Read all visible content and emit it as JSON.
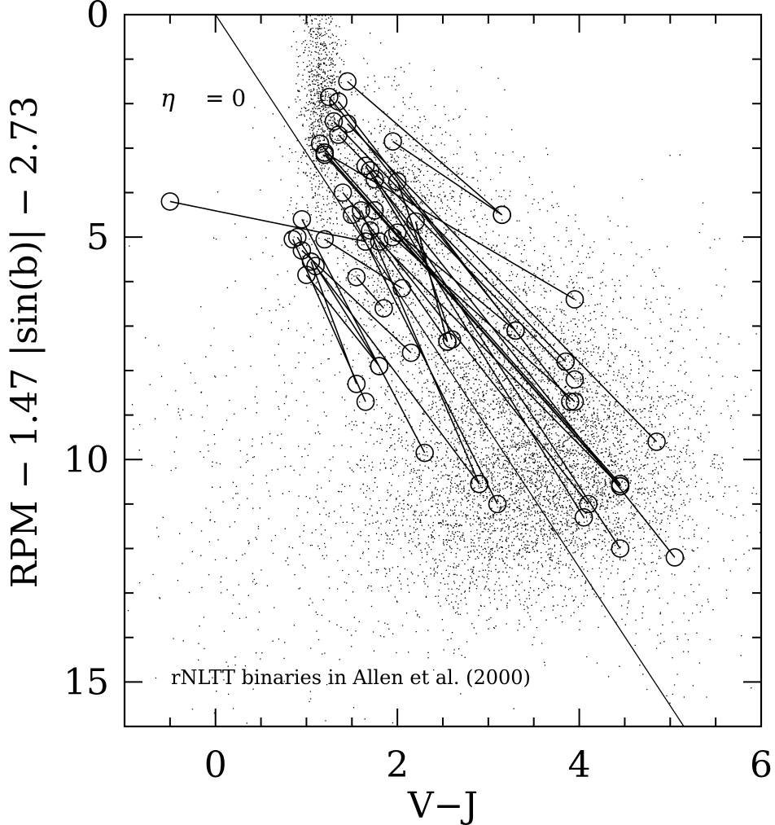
{
  "chart_data": {
    "type": "scatter",
    "title": "",
    "xlabel": "V−J",
    "ylabel": "RPM − 1.47 |sin(b)| − 2.73",
    "xlim": [
      -1,
      6
    ],
    "ylim": [
      16,
      0
    ],
    "y_inverted": true,
    "x_ticks": [
      0,
      2,
      4,
      6
    ],
    "y_ticks": [
      0,
      5,
      10,
      15
    ],
    "x_tick_labels": [
      "0",
      "2",
      "4",
      "6"
    ],
    "y_tick_labels": [
      "0",
      "5",
      "10",
      "15"
    ],
    "annotations": {
      "eta_label": "η",
      "eta_eq": "= 0",
      "caption": "rNLTT binaries in Allen et al. (2000)"
    },
    "eta_zero_line": [
      [
        0,
        0
      ],
      [
        5.15,
        16
      ]
    ],
    "background_field": {
      "description_count": 9000,
      "clusters": [
        {
          "cx": 1.15,
          "cy": 1.8,
          "sx": 0.12,
          "sy": 1.2,
          "n": 900
        },
        {
          "cx": 1.9,
          "cy": 4.5,
          "sx": 0.45,
          "sy": 1.3,
          "n": 1500
        },
        {
          "cx": 3.2,
          "cy": 8.0,
          "sx": 0.7,
          "sy": 1.6,
          "n": 2500
        },
        {
          "cx": 4.0,
          "cy": 10.2,
          "sx": 0.6,
          "sy": 1.2,
          "n": 1800
        },
        {
          "cx": 3.0,
          "cy": 11.3,
          "sx": 0.75,
          "sy": 1.2,
          "n": 1700
        },
        {
          "cx": 0.8,
          "cy": 10.5,
          "sx": 0.9,
          "sy": 3.0,
          "n": 500
        },
        {
          "cx": 5.0,
          "cy": 10.5,
          "sx": 0.5,
          "sy": 2.5,
          "n": 400
        }
      ]
    },
    "binary_pairs": [
      [
        [
          -0.5,
          4.2
        ],
        [
          1.65,
          5.1
        ]
      ],
      [
        [
          1.45,
          1.5
        ],
        [
          3.15,
          4.5
        ]
      ],
      [
        [
          1.95,
          2.85
        ],
        [
          3.15,
          4.5
        ]
      ],
      [
        [
          1.2,
          3.1
        ],
        [
          3.95,
          6.4
        ]
      ],
      [
        [
          1.2,
          3.1
        ],
        [
          4.45,
          10.6
        ]
      ],
      [
        [
          1.2,
          3.15
        ],
        [
          4.45,
          10.6
        ]
      ],
      [
        [
          1.25,
          1.85
        ],
        [
          3.3,
          7.1
        ]
      ],
      [
        [
          1.3,
          2.4
        ],
        [
          3.85,
          7.8
        ]
      ],
      [
        [
          1.35,
          2.7
        ],
        [
          3.95,
          8.2
        ]
      ],
      [
        [
          1.35,
          1.95
        ],
        [
          3.9,
          8.7
        ]
      ],
      [
        [
          1.45,
          2.45
        ],
        [
          4.85,
          9.6
        ]
      ],
      [
        [
          1.15,
          2.9
        ],
        [
          4.45,
          10.55
        ]
      ],
      [
        [
          1.4,
          4.0
        ],
        [
          4.1,
          11.0
        ]
      ],
      [
        [
          1.65,
          3.4
        ],
        [
          4.05,
          11.3
        ]
      ],
      [
        [
          1.7,
          3.5
        ],
        [
          4.45,
          12.0
        ]
      ],
      [
        [
          1.75,
          3.7
        ],
        [
          5.05,
          12.2
        ]
      ],
      [
        [
          2.0,
          3.75
        ],
        [
          2.6,
          7.3
        ]
      ],
      [
        [
          1.5,
          4.5
        ],
        [
          3.1,
          11.0
        ]
      ],
      [
        [
          1.6,
          4.4
        ],
        [
          2.9,
          10.55
        ]
      ],
      [
        [
          1.7,
          4.85
        ],
        [
          2.55,
          7.35
        ]
      ],
      [
        [
          1.8,
          5.1
        ],
        [
          4.45,
          10.6
        ]
      ],
      [
        [
          1.95,
          5.0
        ],
        [
          3.95,
          8.7
        ]
      ],
      [
        [
          2.2,
          4.65
        ],
        [
          2.55,
          7.35
        ]
      ],
      [
        [
          1.75,
          4.4
        ],
        [
          4.45,
          10.6
        ]
      ],
      [
        [
          0.95,
          4.6
        ],
        [
          2.3,
          9.85
        ]
      ],
      [
        [
          0.9,
          5.0
        ],
        [
          1.8,
          7.9
        ]
      ],
      [
        [
          0.85,
          5.05
        ],
        [
          1.65,
          8.7
        ]
      ],
      [
        [
          0.95,
          5.3
        ],
        [
          2.15,
          7.6
        ]
      ],
      [
        [
          1.2,
          5.05
        ],
        [
          2.05,
          6.15
        ]
      ],
      [
        [
          1.05,
          5.55
        ],
        [
          1.55,
          8.3
        ]
      ],
      [
        [
          1.0,
          5.85
        ],
        [
          1.8,
          7.9
        ]
      ],
      [
        [
          1.55,
          5.9
        ],
        [
          1.85,
          6.6
        ]
      ],
      [
        [
          1.1,
          5.65
        ],
        [
          2.9,
          10.55
        ]
      ],
      [
        [
          2.0,
          4.9
        ],
        [
          3.3,
          7.1
        ]
      ]
    ]
  }
}
